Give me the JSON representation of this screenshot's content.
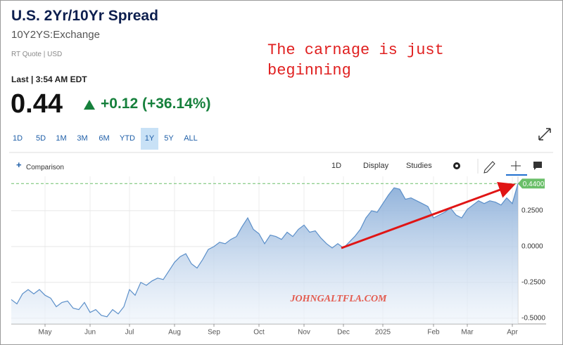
{
  "header": {
    "title": "U.S. 2Yr/10Yr Spread",
    "symbol": "10Y2YS:Exchange",
    "quote_type": "RT Quote | USD",
    "last_time": "Last | 3:54 AM EDT",
    "price": "0.44",
    "change": "+0.12 (+36.14%)"
  },
  "range_buttons": {
    "items": [
      "1D",
      "5D",
      "1M",
      "3M",
      "6M",
      "YTD",
      "1Y",
      "5Y",
      "ALL"
    ],
    "active": "1Y"
  },
  "toolbar": {
    "comparison": "Comparison",
    "interval": "1D",
    "display": "Display",
    "studies": "Studies"
  },
  "annotation": "The carnage is just beginning",
  "watermark": "JOHNGALTFLA.COM",
  "chart_data": {
    "type": "area",
    "categories": [
      null,
      null,
      null,
      null,
      null,
      null,
      "May",
      null,
      null,
      null,
      null,
      null,
      null,
      null,
      "Jun",
      null,
      null,
      null,
      null,
      null,
      null,
      "Jul",
      null,
      null,
      null,
      null,
      null,
      null,
      null,
      "Aug",
      null,
      null,
      null,
      null,
      null,
      null,
      "Sep",
      null,
      null,
      null,
      null,
      null,
      null,
      null,
      "Oct",
      null,
      null,
      null,
      null,
      null,
      null,
      null,
      "Nov",
      null,
      null,
      null,
      null,
      null,
      null,
      "Dec",
      null,
      null,
      null,
      null,
      null,
      null,
      "2025",
      null,
      null,
      null,
      null,
      null,
      null,
      null,
      null,
      "Feb",
      null,
      null,
      null,
      null,
      null,
      "Mar",
      null,
      null,
      null,
      null,
      null,
      null,
      null,
      "Apr",
      null
    ],
    "values": [
      -0.37,
      -0.4,
      -0.33,
      -0.3,
      -0.33,
      -0.3,
      -0.34,
      -0.36,
      -0.42,
      -0.39,
      -0.38,
      -0.43,
      -0.44,
      -0.39,
      -0.46,
      -0.44,
      -0.48,
      -0.49,
      -0.44,
      -0.47,
      -0.42,
      -0.3,
      -0.34,
      -0.25,
      -0.27,
      -0.24,
      -0.22,
      -0.23,
      -0.17,
      -0.11,
      -0.07,
      -0.05,
      -0.12,
      -0.15,
      -0.09,
      -0.02,
      0.0,
      0.03,
      0.02,
      0.05,
      0.07,
      0.14,
      0.2,
      0.12,
      0.09,
      0.02,
      0.08,
      0.07,
      0.05,
      0.1,
      0.07,
      0.12,
      0.15,
      0.1,
      0.11,
      0.06,
      0.02,
      -0.01,
      0.02,
      -0.01,
      0.03,
      0.07,
      0.12,
      0.2,
      0.25,
      0.24,
      0.3,
      0.36,
      0.41,
      0.4,
      0.33,
      0.34,
      0.32,
      0.3,
      0.28,
      0.2,
      0.22,
      0.24,
      0.27,
      0.22,
      0.2,
      0.26,
      0.29,
      0.32,
      0.3,
      0.32,
      0.31,
      0.29,
      0.34,
      0.3,
      0.44
    ],
    "color": "#5b8fc9",
    "ylim": [
      -0.54,
      0.49
    ],
    "yticks": [
      {
        "value": 0.25,
        "label": "0.2500"
      },
      {
        "value": 0,
        "label": "0.0000"
      },
      {
        "value": -0.25,
        "label": "-0.2500"
      },
      {
        "value": -0.5,
        "label": "-0.5000"
      }
    ],
    "grid": true,
    "reference_line": {
      "value": 0.44,
      "label": "0.4400",
      "color": "#6abf69"
    }
  }
}
